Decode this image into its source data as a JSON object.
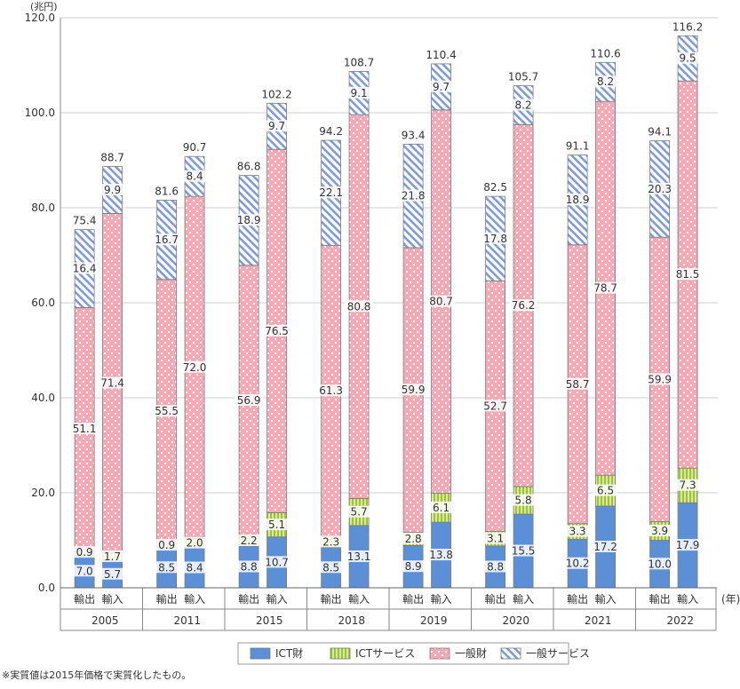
{
  "chart_data": {
    "type": "bar",
    "stacked": true,
    "ylabel": "(兆円)",
    "ylim": [
      0,
      120
    ],
    "yticks": [
      "0.0",
      "20.0",
      "40.0",
      "60.0",
      "80.0",
      "100.0",
      "120.0"
    ],
    "x_unit": "(年)",
    "grid": true,
    "legend_position": "bottom",
    "years": [
      "2005",
      "2011",
      "2015",
      "2018",
      "2019",
      "2020",
      "2021",
      "2022"
    ],
    "bar_labels": [
      "輸出",
      "輸入"
    ],
    "series": [
      {
        "name": "ICT財",
        "color": "#5B8FD6",
        "pattern": "solid",
        "export": [
          7.0,
          8.5,
          8.8,
          8.5,
          8.9,
          8.8,
          10.2,
          10.0
        ],
        "import": [
          5.7,
          8.4,
          10.7,
          13.1,
          13.8,
          15.5,
          17.2,
          17.9
        ]
      },
      {
        "name": "ICTサービス",
        "color": "#B7D35A",
        "pattern": "vstripes",
        "export": [
          0.9,
          0.9,
          2.2,
          2.3,
          2.8,
          3.1,
          3.3,
          3.9
        ],
        "import": [
          1.7,
          2.0,
          5.1,
          5.7,
          6.1,
          5.8,
          6.5,
          7.3
        ]
      },
      {
        "name": "一般財",
        "color": "#F4A9B5",
        "pattern": "dots",
        "export": [
          51.1,
          55.5,
          56.9,
          61.3,
          59.9,
          52.7,
          58.7,
          59.9
        ],
        "import": [
          71.4,
          72.0,
          76.5,
          80.8,
          80.7,
          76.2,
          78.7,
          81.5
        ]
      },
      {
        "name": "一般サービス",
        "color": "#8FA8DF",
        "pattern": "diagonal",
        "export": [
          16.4,
          16.7,
          18.9,
          22.1,
          21.8,
          17.8,
          18.9,
          20.3
        ],
        "import": [
          9.9,
          8.4,
          9.7,
          9.1,
          9.7,
          8.2,
          8.2,
          9.5
        ]
      }
    ],
    "totals": {
      "export": [
        "75.4",
        "81.6",
        "86.8",
        "94.2",
        "93.4",
        "82.5",
        "91.1",
        "94.1"
      ],
      "import": [
        "88.7",
        "90.7",
        "102.2",
        "108.7",
        "110.4",
        "105.7",
        "110.6",
        "116.2"
      ]
    }
  },
  "footnote": "※実質値は2015年価格で実質化したもの。"
}
